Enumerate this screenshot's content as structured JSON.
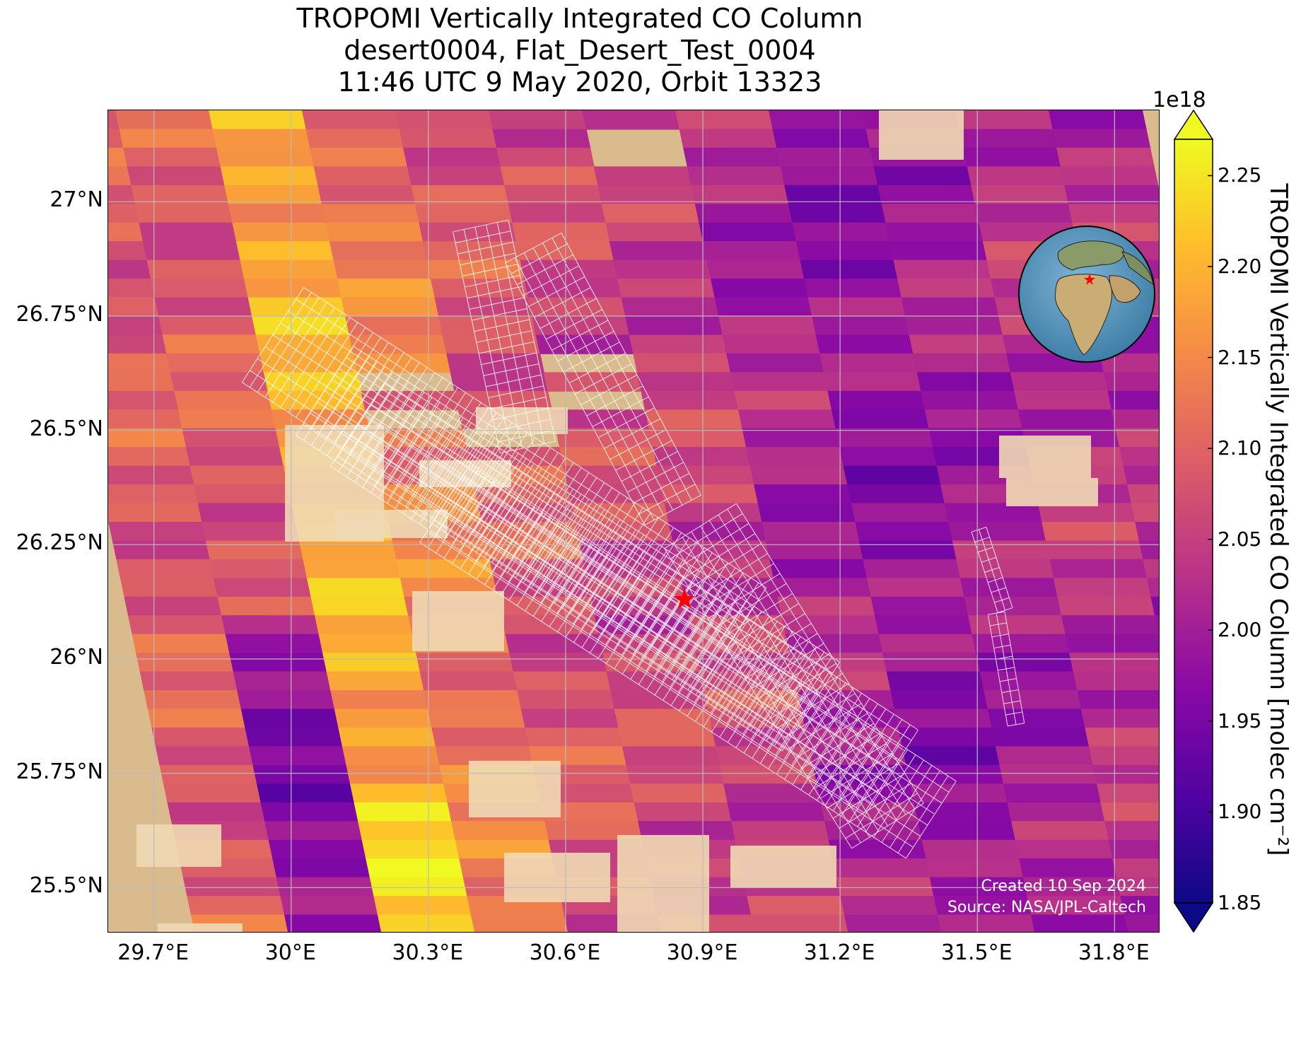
{
  "title": {
    "line1": "TROPOMI Vertically Integrated CO Column",
    "line2": "desert0004, Flat_Desert_Test_0004",
    "line3": "11:46 UTC 9 May 2020, Orbit 13323"
  },
  "map": {
    "lon_range": [
      29.6,
      31.9
    ],
    "lat_range": [
      25.4,
      27.2
    ],
    "lat_ticks": [
      "27°N",
      "26.75°N",
      "26.5°N",
      "26.25°N",
      "26°N",
      "25.75°N",
      "25.5°N"
    ],
    "lat_tick_values": [
      27.0,
      26.75,
      26.5,
      26.25,
      26.0,
      25.75,
      25.5
    ],
    "lon_ticks": [
      "29.7°E",
      "30°E",
      "30.3°E",
      "30.6°E",
      "30.9°E",
      "31.2°E",
      "31.5°E",
      "31.8°E"
    ],
    "lon_tick_values": [
      29.7,
      30.0,
      30.3,
      30.6,
      30.9,
      31.2,
      31.5,
      31.8
    ],
    "grid": true,
    "site_marker": {
      "lon": 30.86,
      "lat": 26.13,
      "color": "#ff0000",
      "symbol": "star"
    },
    "background": "satellite-imagery-desert",
    "colormap": "plasma"
  },
  "colorbar": {
    "label": "TROPOMI Vertically Integrated CO Column [molec cm⁻²]",
    "exponent": "1e18",
    "min": 1.85,
    "max": 2.27,
    "extend": "both",
    "ticks": [
      "1.85",
      "1.90",
      "1.95",
      "2.00",
      "2.05",
      "2.10",
      "2.15",
      "2.20",
      "2.25"
    ],
    "tick_values": [
      1.85,
      1.9,
      1.95,
      2.0,
      2.05,
      2.1,
      2.15,
      2.2,
      2.25
    ]
  },
  "credits": {
    "created": "Created 10 Sep 2024",
    "source": "Source: NASA/JPL-Caltech"
  },
  "inset": {
    "name": "globe-locator",
    "marker_color": "#ff0000"
  }
}
